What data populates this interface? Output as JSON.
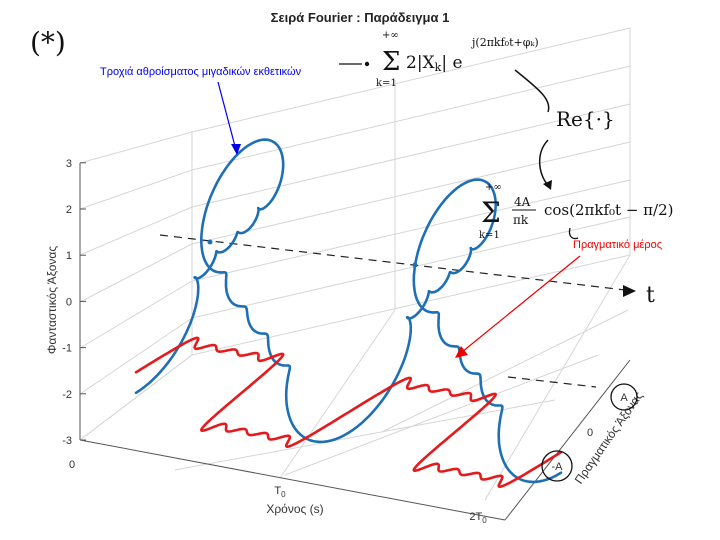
{
  "chart_data": {
    "type": "line",
    "title": "Σειρά Fourier : Παράδειγμα 1",
    "xlabel": "Χρόνος (s)",
    "ylabel": "Φανταστικός Άξονας",
    "zlabel": "Πραγματικός Άξονας",
    "x_ticks": [
      "0",
      "T0",
      "2T0"
    ],
    "y_ticks": [
      "-3",
      "-2",
      "-1",
      "0",
      "1",
      "2",
      "3"
    ],
    "z_ticks": [
      "-A",
      "0",
      "A"
    ],
    "xlim": [
      0,
      2
    ],
    "ylim": [
      -3,
      3
    ],
    "zlim": [
      -1,
      1
    ],
    "grid": true,
    "series": [
      {
        "name": "Τροχιά αθροίσματος μιγαδικών εκθετικών",
        "color": "#1f6fb5",
        "kind": "complex-exponential-sum-trajectory"
      },
      {
        "name": "Πραγματικό μέρος",
        "color": "#e41a1c",
        "kind": "square-wave-partial-sum",
        "values_per_period": [
          1,
          -1
        ]
      }
    ],
    "annotations": {
      "blue_label": "Τροχιά αθροίσματος μιγαδικών εκθετικών",
      "red_label": "Πραγματικό μέρος",
      "t_axis_label": "t",
      "star_mark": "(*)",
      "re_operator": "Re{·}",
      "complex_sum_formula": "Σ_{k=1}^{+∞} 2|X_k| e^{j(2πk f0 t + φ_k)}",
      "real_sum_formula": "Σ_{k=1}^{+∞} (4A/πk) cos(2πk f0 t − π/2)",
      "sum_lower": "k=1",
      "sum_upper": "+∞"
    }
  },
  "colors": {
    "blue_curve": "#1f6fb5",
    "red_curve": "#e41a1c",
    "blue_label": "#0000ee",
    "red_label": "#ee0000",
    "ink": "#111111"
  }
}
